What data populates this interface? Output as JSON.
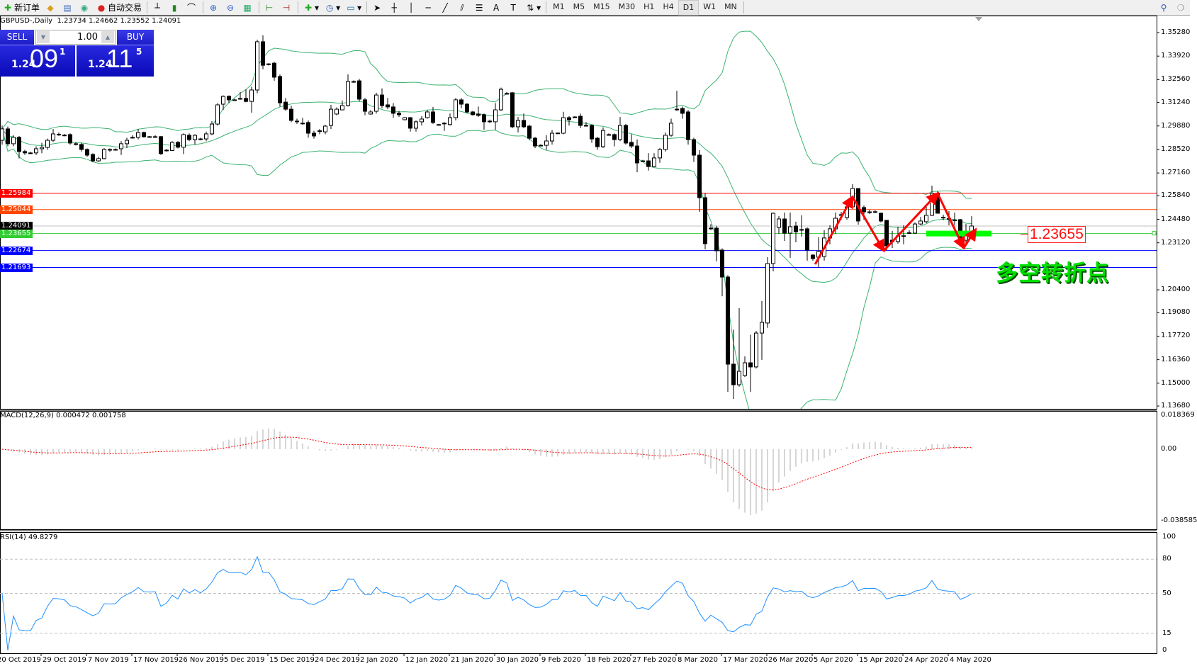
{
  "toolbar": {
    "new_order": "新订单",
    "auto_trading": "自动交易",
    "timeframes": [
      "M1",
      "M5",
      "M15",
      "M30",
      "H1",
      "H4",
      "D1",
      "W1",
      "MN"
    ],
    "active_timeframe": "D1"
  },
  "chart": {
    "header": "GBPUSD-,Daily  1.23734 1.24662 1.23552 1.24091",
    "one_click": {
      "sell": "SELL",
      "buy": "BUY",
      "lot": "1.00",
      "sell_prefix": "1.24",
      "sell_big": "09",
      "sell_sup": "1",
      "buy_prefix": "1.24",
      "buy_big": "11",
      "buy_sup": "5"
    },
    "price_axis": [
      "1.35280",
      "1.33920",
      "1.32560",
      "1.31240",
      "1.29880",
      "1.28520",
      "1.27160",
      "1.25840",
      "1.24480",
      "1.23120",
      "1.20400",
      "1.19080",
      "1.17720",
      "1.16360",
      "1.15000",
      "1.13680"
    ],
    "hlines": [
      {
        "price": 1.25984,
        "label": "1.25984",
        "color": "#ff0000"
      },
      {
        "price": 1.25044,
        "label": "1.25044",
        "color": "#ff4500"
      },
      {
        "price": 1.24091,
        "label": "1.24091",
        "color": "#000000",
        "line": "#c0c0c0"
      },
      {
        "price": 1.23655,
        "label": "1.23655",
        "color": "#32cd32"
      },
      {
        "price": 1.22674,
        "label": "1.22674",
        "color": "#0000ff"
      },
      {
        "price": 1.21693,
        "label": "1.21693",
        "color": "#0000ff"
      }
    ],
    "price_label": "1.23655",
    "annotation": "多空转折点",
    "zigzag": [
      [
        143.4,
        1.2188
      ],
      [
        150,
        1.2578
      ],
      [
        155.5,
        1.2266
      ],
      [
        165,
        1.2598
      ],
      [
        169.6,
        1.2282
      ],
      [
        171.7,
        1.2389
      ]
    ],
    "green_zone": {
      "from": 163,
      "to": 174.5,
      "price": 1.23655
    },
    "colors": {
      "bands": "#3cb371",
      "zigzag": "#ff0000",
      "zone": "#00ff00",
      "macd_hist": "#c0c0c0",
      "macd_signal": "#ff0000",
      "rsi": "#1e90ff"
    }
  },
  "macd": {
    "label": "MACD(12,26,9) 0.000472 0.001758",
    "axis": [
      "0.018369",
      "0.00",
      "-0.038585"
    ],
    "params": [
      12,
      26,
      9
    ]
  },
  "rsi": {
    "label": "RSI(14) 49.8279",
    "axis": [
      "100",
      "80",
      "50",
      "15",
      "0"
    ],
    "levels": [
      80,
      50,
      15
    ],
    "period": 14
  },
  "dates": [
    "20 Oct 2019",
    "29 Oct 2019",
    "7 Nov 2019",
    "17 Nov 2019",
    "26 Nov 2019",
    "5 Dec 2019",
    "15 Dec 2019",
    "24 Dec 2019",
    "2 Jan 2020",
    "12 Jan 2020",
    "21 Jan 2020",
    "30 Jan 2020",
    "9 Feb 2020",
    "18 Feb 2020",
    "27 Feb 2020",
    "8 Mar 2020",
    "17 Mar 2020",
    "26 Mar 2020",
    "5 Apr 2020",
    "15 Apr 2020",
    "24 Apr 2020",
    "4 May 2020"
  ],
  "chart_data": {
    "type": "candlestick",
    "symbol": "GBPUSD-",
    "timeframe": "Daily",
    "ylim": [
      1.1352,
      1.3626
    ],
    "bollinger": [
      20,
      2
    ],
    "ohlc": [
      [
        1.2905,
        1.299,
        1.288,
        1.2971
      ],
      [
        1.2971,
        1.2985,
        1.287,
        1.2885
      ],
      [
        1.2885,
        1.2935,
        1.287,
        1.2922
      ],
      [
        1.2922,
        1.293,
        1.28,
        1.284
      ],
      [
        1.284,
        1.285,
        1.282,
        1.2832
      ],
      [
        1.2832,
        1.2838,
        1.2825,
        1.283
      ],
      [
        1.2832,
        1.287,
        1.282,
        1.2856
      ],
      [
        1.2856,
        1.289,
        1.283,
        1.2864
      ],
      [
        1.2864,
        1.2915,
        1.285,
        1.2905
      ],
      [
        1.2905,
        1.297,
        1.2895,
        1.2942
      ],
      [
        1.2938,
        1.295,
        1.293,
        1.294
      ],
      [
        1.2935,
        1.2942,
        1.2928,
        1.2933
      ],
      [
        1.2938,
        1.2945,
        1.288,
        1.2889
      ],
      [
        1.2885,
        1.2895,
        1.2875,
        1.2881
      ],
      [
        1.2881,
        1.289,
        1.284,
        1.2852
      ],
      [
        1.2852,
        1.2858,
        1.281,
        1.2819
      ],
      [
        1.2823,
        1.283,
        1.2778,
        1.2786
      ],
      [
        1.2786,
        1.281,
        1.278,
        1.2799
      ],
      [
        1.2799,
        1.286,
        1.2795,
        1.2852
      ],
      [
        1.2852,
        1.2858,
        1.2838,
        1.285
      ],
      [
        1.285,
        1.2858,
        1.2845,
        1.2852
      ],
      [
        1.2856,
        1.29,
        1.282,
        1.2885
      ],
      [
        1.2885,
        1.292,
        1.286,
        1.2905
      ],
      [
        1.292,
        1.2935,
        1.2915,
        1.2922
      ],
      [
        1.2922,
        1.297,
        1.291,
        1.295
      ],
      [
        1.295,
        1.2955,
        1.292,
        1.2926
      ],
      [
        1.2926,
        1.293,
        1.2921,
        1.2924
      ],
      [
        1.2924,
        1.2935,
        1.292,
        1.2926
      ],
      [
        1.2926,
        1.293,
        1.282,
        1.2828
      ],
      [
        1.2848,
        1.2855,
        1.284,
        1.2846
      ],
      [
        1.2846,
        1.29,
        1.2843,
        1.2893
      ],
      [
        1.2893,
        1.29,
        1.2858,
        1.2865
      ],
      [
        1.2865,
        1.2945,
        1.2825,
        1.2938
      ],
      [
        1.2934,
        1.2945,
        1.29,
        1.2909
      ],
      [
        1.2909,
        1.294,
        1.288,
        1.2934
      ],
      [
        1.2913,
        1.292,
        1.2905,
        1.2911
      ],
      [
        1.2913,
        1.2955,
        1.29,
        1.2942
      ],
      [
        1.2942,
        1.3015,
        1.2935,
        1.2999
      ],
      [
        1.2999,
        1.312,
        1.299,
        1.311
      ],
      [
        1.3114,
        1.3165,
        1.308,
        1.3159
      ],
      [
        1.3159,
        1.3165,
        1.312,
        1.3139
      ],
      [
        1.3139,
        1.3145,
        1.3135,
        1.3137
      ],
      [
        1.3147,
        1.3185,
        1.314,
        1.3145
      ],
      [
        1.3147,
        1.32,
        1.3125,
        1.313
      ],
      [
        1.313,
        1.3215,
        1.3065,
        1.3196
      ],
      [
        1.3196,
        1.3487,
        1.3176,
        1.3475
      ],
      [
        1.3475,
        1.3512,
        1.3316,
        1.3339
      ],
      [
        1.3343,
        1.335,
        1.3338,
        1.3347
      ],
      [
        1.3351,
        1.336,
        1.325,
        1.327
      ],
      [
        1.3274,
        1.3285,
        1.31,
        1.3122
      ],
      [
        1.3126,
        1.315,
        1.3075,
        1.3085
      ],
      [
        1.3085,
        1.3105,
        1.301,
        1.302
      ],
      [
        1.3016,
        1.303,
        1.3,
        1.3014
      ],
      [
        1.3004,
        1.3035,
        1.2995,
        1.3002
      ],
      [
        1.3008,
        1.302,
        1.292,
        1.2946
      ],
      [
        1.2946,
        1.296,
        1.2915,
        1.293
      ],
      [
        1.2958,
        1.297,
        1.294,
        1.296
      ],
      [
        1.2954,
        1.2995,
        1.294,
        1.2987
      ],
      [
        1.2991,
        1.311,
        1.297,
        1.3085
      ],
      [
        1.3057,
        1.3095,
        1.305,
        1.3085
      ],
      [
        1.3081,
        1.3135,
        1.3078,
        1.3106
      ],
      [
        1.3106,
        1.3286,
        1.31,
        1.3245
      ],
      [
        1.3245,
        1.3252,
        1.3238,
        1.3243
      ],
      [
        1.3249,
        1.326,
        1.313,
        1.3143
      ],
      [
        1.3139,
        1.315,
        1.305,
        1.3073
      ],
      [
        1.3057,
        1.308,
        1.3052,
        1.3069
      ],
      [
        1.3073,
        1.318,
        1.306,
        1.3167
      ],
      [
        1.3167,
        1.3205,
        1.309,
        1.3106
      ],
      [
        1.311,
        1.315,
        1.3085,
        1.3098
      ],
      [
        1.3098,
        1.312,
        1.3035,
        1.3061
      ],
      [
        1.3061,
        1.3075,
        1.304,
        1.3053
      ],
      [
        1.3024,
        1.304,
        1.302,
        1.3036
      ],
      [
        1.3036,
        1.304,
        1.2955,
        1.2975
      ],
      [
        1.2975,
        1.302,
        1.2955,
        1.3012
      ],
      [
        1.3012,
        1.3045,
        1.299,
        1.3028
      ],
      [
        1.3036,
        1.308,
        1.303,
        1.3069
      ],
      [
        1.3069,
        1.3098,
        1.3,
        1.3008
      ],
      [
        1.2996,
        1.3,
        1.2992,
        1.2995
      ],
      [
        1.3004,
        1.301,
        1.296,
        1.3003
      ],
      [
        1.2996,
        1.306,
        1.299,
        1.3036
      ],
      [
        1.3036,
        1.315,
        1.302,
        1.3139
      ],
      [
        1.3139,
        1.315,
        1.309,
        1.3114
      ],
      [
        1.3114,
        1.312,
        1.306,
        1.3069
      ],
      [
        1.3069,
        1.3075,
        1.3048,
        1.3053
      ],
      [
        1.3057,
        1.31,
        1.304,
        1.3049
      ],
      [
        1.3053,
        1.306,
        1.2965,
        1.3012
      ],
      [
        1.3016,
        1.3025,
        1.3005,
        1.3015
      ],
      [
        1.3012,
        1.312,
        1.2965,
        1.3081
      ],
      [
        1.3081,
        1.321,
        1.3075,
        1.32
      ],
      [
        1.3176,
        1.3185,
        1.317,
        1.3175
      ],
      [
        1.318,
        1.3185,
        1.2975,
        1.2983
      ],
      [
        1.2983,
        1.304,
        1.295,
        1.302
      ],
      [
        1.302,
        1.306,
        1.2975,
        1.2983
      ],
      [
        1.2987,
        1.2995,
        1.2905,
        1.2917
      ],
      [
        1.2917,
        1.2925,
        1.286,
        1.2872
      ],
      [
        1.2876,
        1.2882,
        1.2872,
        1.2875
      ],
      [
        1.2876,
        1.2935,
        1.285,
        1.2901
      ],
      [
        1.2901,
        1.2965,
        1.288,
        1.2946
      ],
      [
        1.2946,
        1.295,
        1.2942,
        1.2947
      ],
      [
        1.2946,
        1.307,
        1.294,
        1.3036
      ],
      [
        1.3036,
        1.3045,
        1.299,
        1.3024
      ],
      [
        1.304,
        1.3045,
        1.3034,
        1.3039
      ],
      [
        1.3044,
        1.306,
        1.2975,
        1.2991
      ],
      [
        1.2991,
        1.301,
        1.2985,
        1.299
      ],
      [
        1.2991,
        1.2998,
        1.289,
        1.2913
      ],
      [
        1.2917,
        1.2925,
        1.285,
        1.2868
      ],
      [
        1.2868,
        1.298,
        1.286,
        1.2962
      ],
      [
        1.2938,
        1.2945,
        1.2932,
        1.2937
      ],
      [
        1.2938,
        1.2945,
        1.287,
        1.2909
      ],
      [
        1.2909,
        1.304,
        1.29,
        1.2991
      ],
      [
        1.2991,
        1.3,
        1.288,
        1.2889
      ],
      [
        1.2893,
        1.294,
        1.286,
        1.2872
      ],
      [
        1.2872,
        1.291,
        1.272,
        1.2774
      ],
      [
        1.2786,
        1.2792,
        1.278,
        1.2785
      ],
      [
        1.2786,
        1.283,
        1.273,
        1.2753
      ],
      [
        1.2753,
        1.283,
        1.275,
        1.2803
      ],
      [
        1.2803,
        1.286,
        1.2775,
        1.2852
      ],
      [
        1.2852,
        1.295,
        1.284,
        1.2934
      ],
      [
        1.2934,
        1.303,
        1.2925,
        1.3004
      ],
      [
        1.3085,
        1.3192,
        1.3075,
        1.3083
      ],
      [
        1.3089,
        1.31,
        1.303,
        1.3061
      ],
      [
        1.3069,
        1.308,
        1.288,
        1.2909
      ],
      [
        1.2909,
        1.292,
        1.278,
        1.2819
      ],
      [
        1.2819,
        1.2848,
        1.2491,
        1.2573
      ],
      [
        1.2573,
        1.26,
        1.2274,
        1.2307
      ],
      [
        1.2397,
        1.242,
        1.2385,
        1.2395
      ],
      [
        1.2397,
        1.241,
        1.2204,
        1.2266
      ],
      [
        1.227,
        1.228,
        1.2003,
        1.2114
      ],
      [
        1.2114,
        1.2125,
        1.145,
        1.161
      ],
      [
        1.161,
        1.181,
        1.1409,
        1.1491
      ],
      [
        1.1491,
        1.1934,
        1.148,
        1.1569
      ],
      [
        1.1544,
        1.1655,
        1.1535,
        1.1618
      ],
      [
        1.1618,
        1.178,
        1.145,
        1.1594
      ],
      [
        1.1594,
        1.1802,
        1.1585,
        1.179
      ],
      [
        1.179,
        1.1975,
        1.1635,
        1.1852
      ],
      [
        1.1848,
        1.2229,
        1.182,
        1.2192
      ],
      [
        1.2192,
        1.2487,
        1.2147,
        1.2483
      ],
      [
        1.2401,
        1.2467,
        1.2364,
        1.245
      ],
      [
        1.245,
        1.2487,
        1.2323,
        1.2368
      ],
      [
        1.2368,
        1.2487,
        1.2225,
        1.2405
      ],
      [
        1.2409,
        1.2434,
        1.2315,
        1.2376
      ],
      [
        1.2389,
        1.2471,
        1.2348,
        1.2388
      ],
      [
        1.2393,
        1.2401,
        1.2209,
        1.227
      ],
      [
        1.2241,
        1.2245,
        1.2209,
        1.2221
      ],
      [
        1.2229,
        1.2344,
        1.2168,
        1.2262
      ],
      [
        1.2233,
        1.2385,
        1.2209,
        1.234
      ],
      [
        1.234,
        1.2413,
        1.2303,
        1.2393
      ],
      [
        1.2393,
        1.2487,
        1.2364,
        1.2454
      ],
      [
        1.2475,
        1.2491,
        1.2446,
        1.2473
      ],
      [
        1.2458,
        1.2553,
        1.2446,
        1.252
      ],
      [
        1.252,
        1.2651,
        1.2508,
        1.2626
      ],
      [
        1.2626,
        1.2626,
        1.2417,
        1.2438
      ],
      [
        1.2516,
        1.2528,
        1.2446,
        1.2491
      ],
      [
        1.2491,
        1.2504,
        1.2479,
        1.249
      ],
      [
        1.2491,
        1.25,
        1.2485,
        1.2492
      ],
      [
        1.2483,
        1.2487,
        1.243,
        1.2438
      ],
      [
        1.2442,
        1.2442,
        1.227,
        1.2294
      ],
      [
        1.2327,
        1.2381,
        1.2282,
        1.2319
      ],
      [
        1.2319,
        1.2405,
        1.2307,
        1.2352
      ],
      [
        1.2352,
        1.2413,
        1.2303,
        1.2353
      ],
      [
        1.2368,
        1.2385,
        1.2364,
        1.237
      ],
      [
        1.2368,
        1.243,
        1.2364,
        1.2421
      ],
      [
        1.2421,
        1.2462,
        1.2413,
        1.2438
      ],
      [
        1.2434,
        1.252,
        1.2425,
        1.2471
      ],
      [
        1.2471,
        1.2643,
        1.2467,
        1.2598
      ],
      [
        1.2598,
        1.261,
        1.2483,
        1.2483
      ],
      [
        1.2458,
        1.2475,
        1.2442,
        1.246
      ],
      [
        1.245,
        1.2495,
        1.2413,
        1.2452
      ],
      [
        1.2442,
        1.2487,
        1.2413,
        1.2444
      ],
      [
        1.2446,
        1.245,
        1.2315,
        1.2335
      ],
      [
        1.2327,
        1.2421,
        1.2307,
        1.2364
      ],
      [
        1.23734,
        1.24662,
        1.23552,
        1.24091
      ]
    ]
  }
}
